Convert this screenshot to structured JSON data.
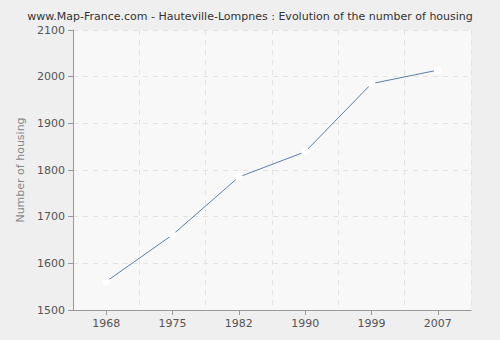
{
  "chart_data": {
    "type": "line",
    "title": "www.Map-France.com - Hauteville-Lompnes : Evolution of the number of housing",
    "ylabel": "Number of housing",
    "categories": [
      "1968",
      "1975",
      "1982",
      "1990",
      "1999",
      "2007"
    ],
    "values": [
      1561,
      1661,
      1785,
      1839,
      1985,
      2014
    ],
    "color": "#5b7fa8",
    "marker": "circle",
    "ylim": [
      1500,
      2100
    ],
    "yticks": [
      1500,
      1600,
      1700,
      1800,
      1900,
      2000,
      2100
    ],
    "grid": true
  }
}
